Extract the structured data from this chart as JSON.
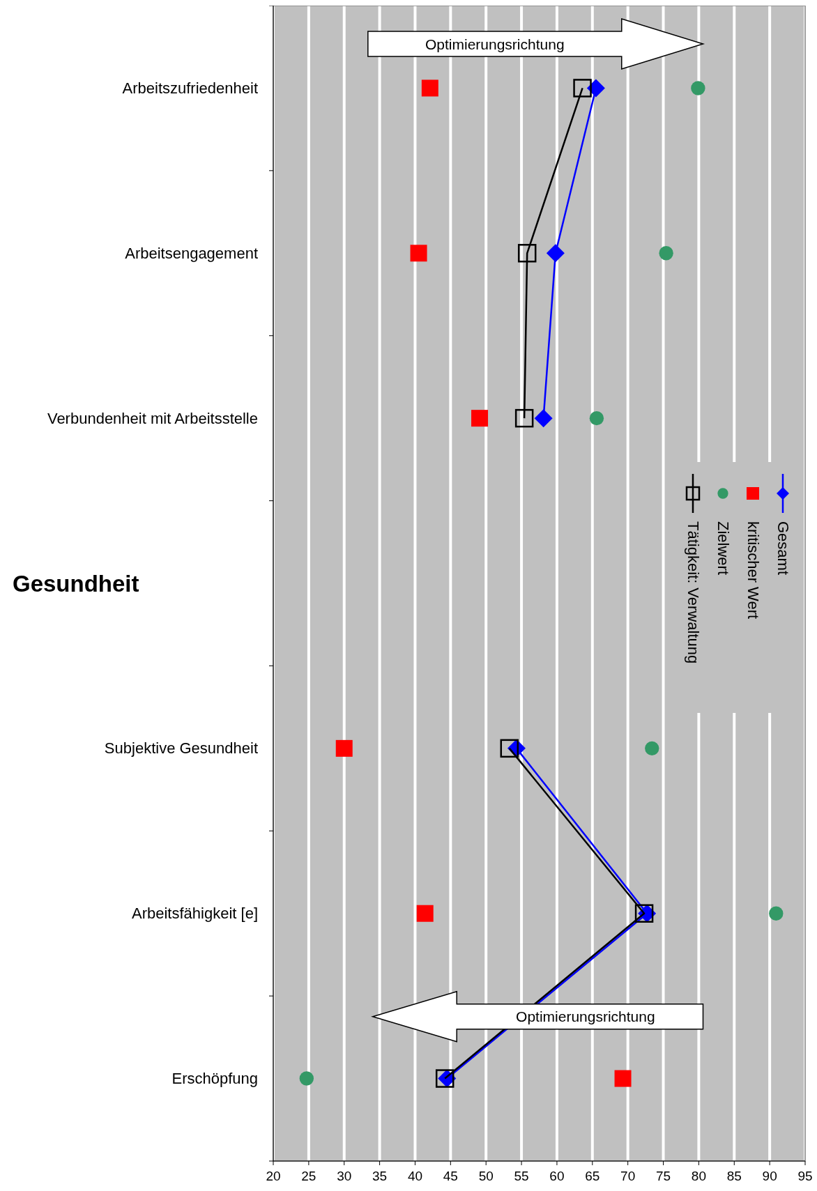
{
  "chart_data": {
    "type": "line",
    "orientation": "horizontal",
    "categories": [
      "Arbeitszufriedenheit",
      "Arbeitsengagement",
      "Verbundenheit mit Arbeitsstelle",
      null,
      "Subjektive Gesundheit",
      "Arbeitsfähigkeit [e]",
      "Erschöpfung"
    ],
    "series": [
      {
        "name": "Gesamt",
        "marker": "diamond",
        "color": "#0000ff",
        "values": [
          65.5,
          59.8,
          58.1,
          null,
          54.3,
          72.7,
          44.5
        ]
      },
      {
        "name": "kritischer Wert",
        "type": "scatter",
        "marker": "square",
        "color": "#ff0000",
        "values": [
          42.1,
          40.5,
          49.1,
          null,
          30.0,
          41.4,
          69.3
        ]
      },
      {
        "name": "Zielwert",
        "type": "scatter",
        "marker": "circle",
        "color": "#339966",
        "values": [
          79.9,
          75.4,
          65.6,
          null,
          73.4,
          90.9,
          24.7
        ]
      },
      {
        "name": "Tätigkeit: Verwaltung",
        "marker": "square",
        "color": "#000000",
        "values": [
          63.6,
          55.8,
          55.4,
          null,
          53.3,
          72.3,
          44.2
        ]
      }
    ],
    "xlim": [
      20,
      95
    ],
    "xticks": [
      20,
      25,
      30,
      35,
      40,
      45,
      50,
      55,
      60,
      65,
      70,
      75,
      80,
      85,
      90,
      95
    ],
    "grid": "x",
    "legend": "right",
    "annotations": [
      "Optimierungsrichtung",
      "Optimierungsrichtung",
      "Gesundheit"
    ]
  }
}
